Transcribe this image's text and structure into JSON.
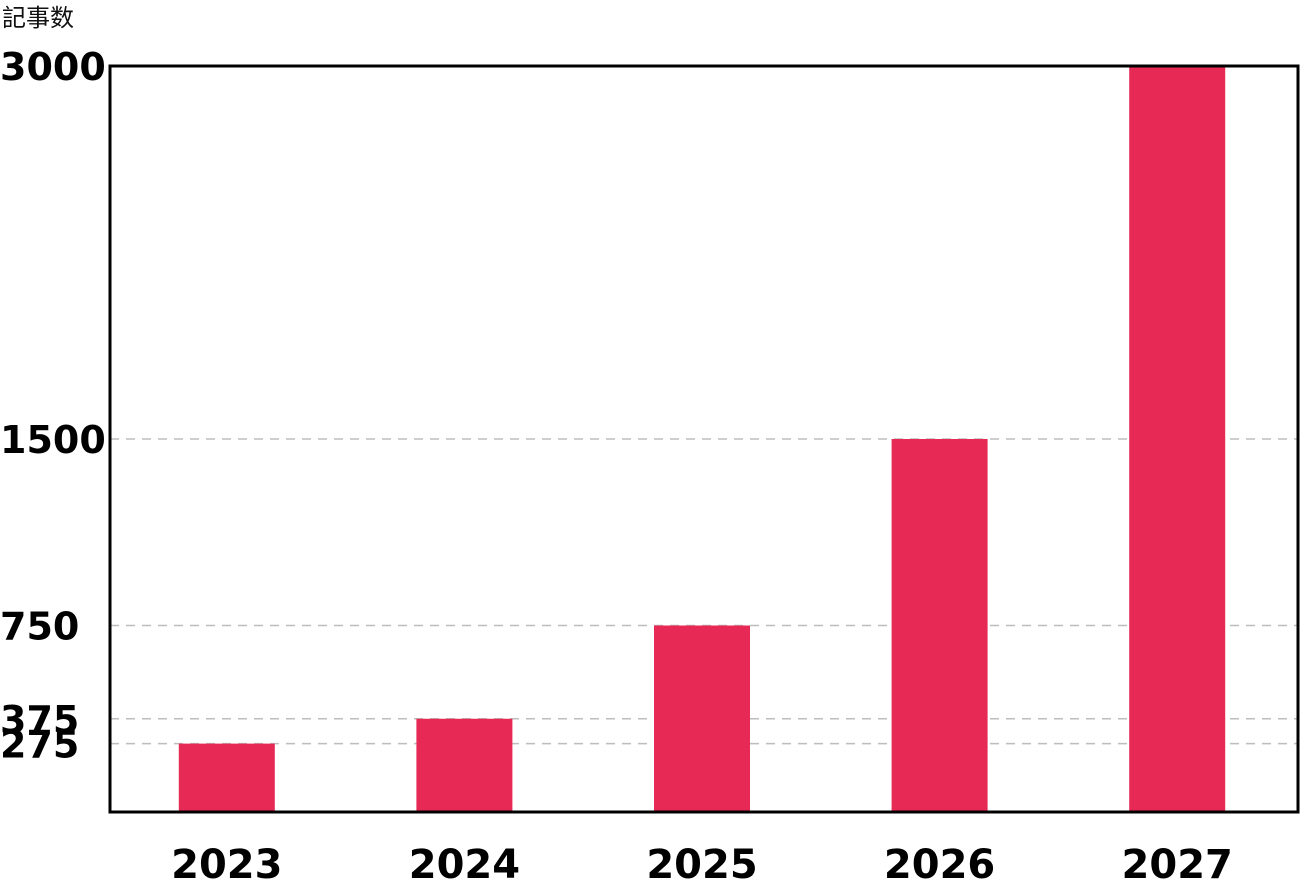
{
  "chart_data": {
    "type": "bar",
    "title": "",
    "xlabel": "",
    "ylabel": "記事数",
    "categories": [
      "2023",
      "2024",
      "2025",
      "2026",
      "2027"
    ],
    "values": [
      275,
      375,
      750,
      1500,
      3000
    ],
    "yticks": [
      275,
      375,
      750,
      1500,
      3000
    ],
    "ylim": [
      0,
      3000
    ],
    "grid": true,
    "legend": "none",
    "bar_color": "#e62a55",
    "grid_color": "#bdbdbd"
  }
}
